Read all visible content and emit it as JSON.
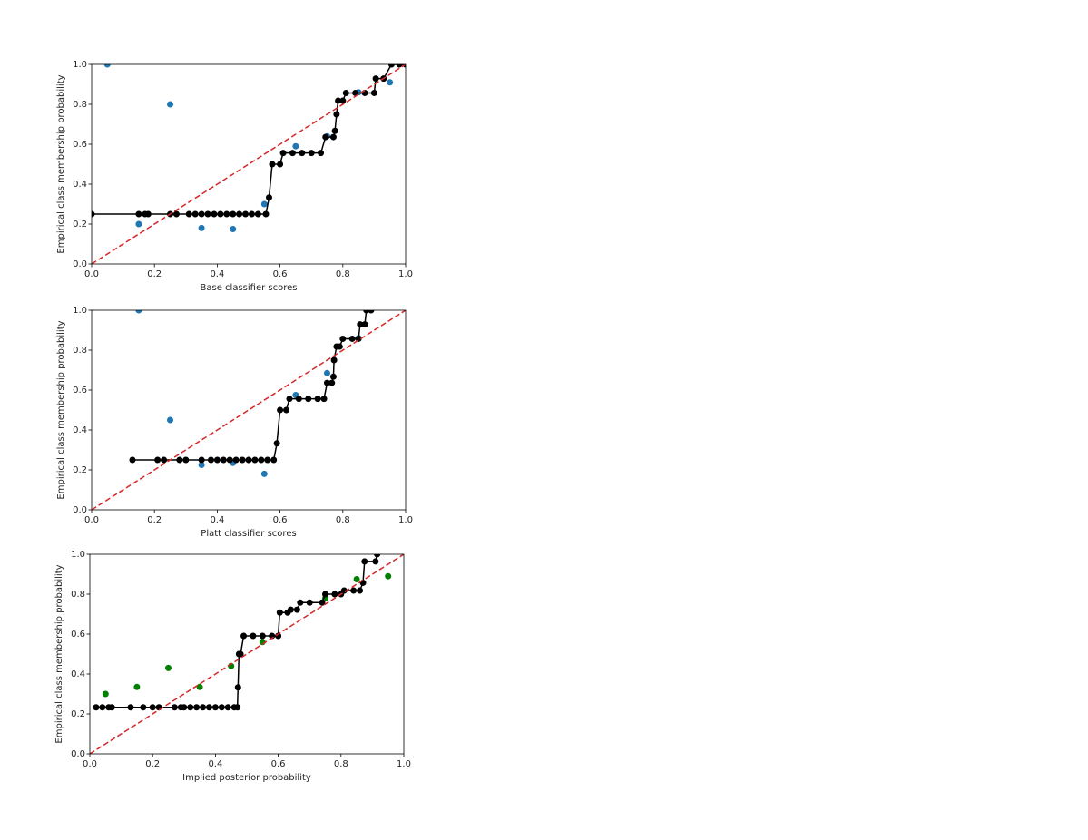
{
  "chart_data": [
    {
      "type": "line",
      "xlabel": "Base classifier scores",
      "ylabel": "Empirical class membership probability",
      "xlim": [
        0,
        1
      ],
      "ylim": [
        0,
        1
      ],
      "xticks": [
        {
          "value": 0,
          "label": "0.0"
        },
        0.2,
        0.4,
        0.6,
        0.8,
        {
          "value": 1,
          "label": "1.0"
        }
      ],
      "yticks": [
        {
          "value": 0,
          "label": "0.0"
        },
        0.2,
        0.4,
        0.6,
        0.8,
        {
          "value": 1,
          "label": "1.0"
        }
      ],
      "series": [
        {
          "color": "#1f77b4",
          "line": "none",
          "marker": true,
          "x": [
            0.05,
            0.15,
            0.25,
            0.35,
            0.45,
            0.55,
            0.65,
            0.75,
            0.85,
            0.95
          ],
          "values": [
            1.0,
            0.2,
            0.8,
            0.18,
            0.175,
            0.3,
            0.59,
            0.64,
            0.86,
            0.91
          ]
        },
        {
          "color": "#000000",
          "line": "solid",
          "marker": true,
          "x": [
            0.0,
            0.15,
            0.17,
            0.18,
            0.25,
            0.27,
            0.31,
            0.33,
            0.35,
            0.37,
            0.39,
            0.41,
            0.43,
            0.45,
            0.47,
            0.49,
            0.51,
            0.53,
            0.555,
            0.565,
            0.575,
            0.6,
            0.61,
            0.64,
            0.67,
            0.7,
            0.73,
            0.745,
            0.77,
            0.775,
            0.78,
            0.785,
            0.8,
            0.81,
            0.84,
            0.87,
            0.9,
            0.905,
            0.93,
            0.955,
            0.98,
            1.0
          ],
          "values": [
            0.25,
            0.25,
            0.25,
            0.25,
            0.25,
            0.25,
            0.25,
            0.25,
            0.25,
            0.25,
            0.25,
            0.25,
            0.25,
            0.25,
            0.25,
            0.25,
            0.25,
            0.25,
            0.25,
            0.333,
            0.5,
            0.5,
            0.556,
            0.556,
            0.556,
            0.556,
            0.556,
            0.636,
            0.636,
            0.667,
            0.75,
            0.818,
            0.818,
            0.857,
            0.857,
            0.857,
            0.857,
            0.929,
            0.929,
            1.0,
            1.0,
            1.0
          ]
        },
        {
          "color": "#d62728",
          "line": "dashed",
          "marker": false,
          "x": [
            0,
            1
          ],
          "values": [
            0,
            1
          ]
        }
      ]
    },
    {
      "type": "line",
      "xlabel": "Platt classifier scores",
      "ylabel": "Empirical class membership probability",
      "xlim": [
        0,
        1
      ],
      "ylim": [
        0,
        1
      ],
      "xticks": [
        {
          "value": 0,
          "label": "0.0"
        },
        0.2,
        0.4,
        0.6,
        0.8,
        {
          "value": 1,
          "label": "1.0"
        }
      ],
      "yticks": [
        {
          "value": 0,
          "label": "0.0"
        },
        0.2,
        0.4,
        0.6,
        0.8,
        {
          "value": 1,
          "label": "1.0"
        }
      ],
      "series": [
        {
          "color": "#1f77b4",
          "line": "none",
          "marker": true,
          "x": [
            0.15,
            0.25,
            0.35,
            0.45,
            0.55,
            0.65,
            0.75,
            0.85
          ],
          "values": [
            1.0,
            0.45,
            0.225,
            0.235,
            0.18,
            0.575,
            0.685,
            0.86
          ]
        },
        {
          "color": "#000000",
          "line": "solid",
          "marker": true,
          "x": [
            0.13,
            0.21,
            0.23,
            0.28,
            0.3,
            0.35,
            0.38,
            0.4,
            0.42,
            0.44,
            0.46,
            0.48,
            0.5,
            0.52,
            0.54,
            0.56,
            0.58,
            0.59,
            0.6,
            0.62,
            0.63,
            0.66,
            0.69,
            0.72,
            0.74,
            0.75,
            0.765,
            0.77,
            0.772,
            0.78,
            0.79,
            0.8,
            0.83,
            0.85,
            0.855,
            0.87,
            0.875,
            0.89
          ],
          "values": [
            0.25,
            0.25,
            0.25,
            0.25,
            0.25,
            0.25,
            0.25,
            0.25,
            0.25,
            0.25,
            0.25,
            0.25,
            0.25,
            0.25,
            0.25,
            0.25,
            0.25,
            0.333,
            0.5,
            0.5,
            0.556,
            0.556,
            0.556,
            0.556,
            0.556,
            0.636,
            0.636,
            0.667,
            0.75,
            0.818,
            0.818,
            0.857,
            0.857,
            0.857,
            0.929,
            0.929,
            1.0,
            1.0
          ]
        },
        {
          "color": "#d62728",
          "line": "dashed",
          "marker": false,
          "x": [
            0,
            1
          ],
          "values": [
            0,
            1
          ]
        }
      ]
    },
    {
      "type": "line",
      "xlabel": "Implied posterior probability",
      "ylabel": "Empirical class membership probability",
      "xlim": [
        0,
        1
      ],
      "ylim": [
        0,
        1
      ],
      "xticks": [
        {
          "value": 0,
          "label": "0.0"
        },
        0.2,
        0.4,
        0.6,
        0.8,
        {
          "value": 1,
          "label": "1.0"
        }
      ],
      "yticks": [
        {
          "value": 0,
          "label": "0.0"
        },
        0.2,
        0.4,
        0.6,
        0.8,
        {
          "value": 1,
          "label": "1.0"
        }
      ],
      "series": [
        {
          "color": "#008000",
          "line": "none",
          "marker": true,
          "x": [
            0.05,
            0.15,
            0.25,
            0.35,
            0.45,
            0.55,
            0.75,
            0.85,
            0.95
          ],
          "values": [
            0.3,
            0.335,
            0.43,
            0.335,
            0.44,
            0.56,
            0.78,
            0.875,
            0.89
          ]
        },
        {
          "color": "#000000",
          "line": "solid",
          "marker": true,
          "x": [
            0.02,
            0.04,
            0.06,
            0.07,
            0.13,
            0.17,
            0.2,
            0.22,
            0.27,
            0.29,
            0.3,
            0.32,
            0.34,
            0.36,
            0.38,
            0.4,
            0.42,
            0.44,
            0.46,
            0.47,
            0.472,
            0.475,
            0.48,
            0.49,
            0.52,
            0.55,
            0.58,
            0.6,
            0.605,
            0.63,
            0.64,
            0.66,
            0.67,
            0.7,
            0.74,
            0.75,
            0.78,
            0.8,
            0.81,
            0.84,
            0.86,
            0.87,
            0.875,
            0.91,
            0.915
          ],
          "values": [
            0.233,
            0.233,
            0.233,
            0.233,
            0.233,
            0.233,
            0.233,
            0.233,
            0.233,
            0.233,
            0.233,
            0.233,
            0.233,
            0.233,
            0.233,
            0.233,
            0.233,
            0.233,
            0.233,
            0.233,
            0.333,
            0.5,
            0.5,
            0.591,
            0.591,
            0.591,
            0.591,
            0.591,
            0.708,
            0.708,
            0.722,
            0.722,
            0.758,
            0.758,
            0.758,
            0.8,
            0.8,
            0.8,
            0.818,
            0.818,
            0.818,
            0.857,
            0.964,
            0.964,
            1.0
          ]
        },
        {
          "color": "#d62728",
          "line": "dashed",
          "marker": false,
          "x": [
            0,
            1
          ],
          "values": [
            0,
            1
          ]
        }
      ]
    }
  ]
}
